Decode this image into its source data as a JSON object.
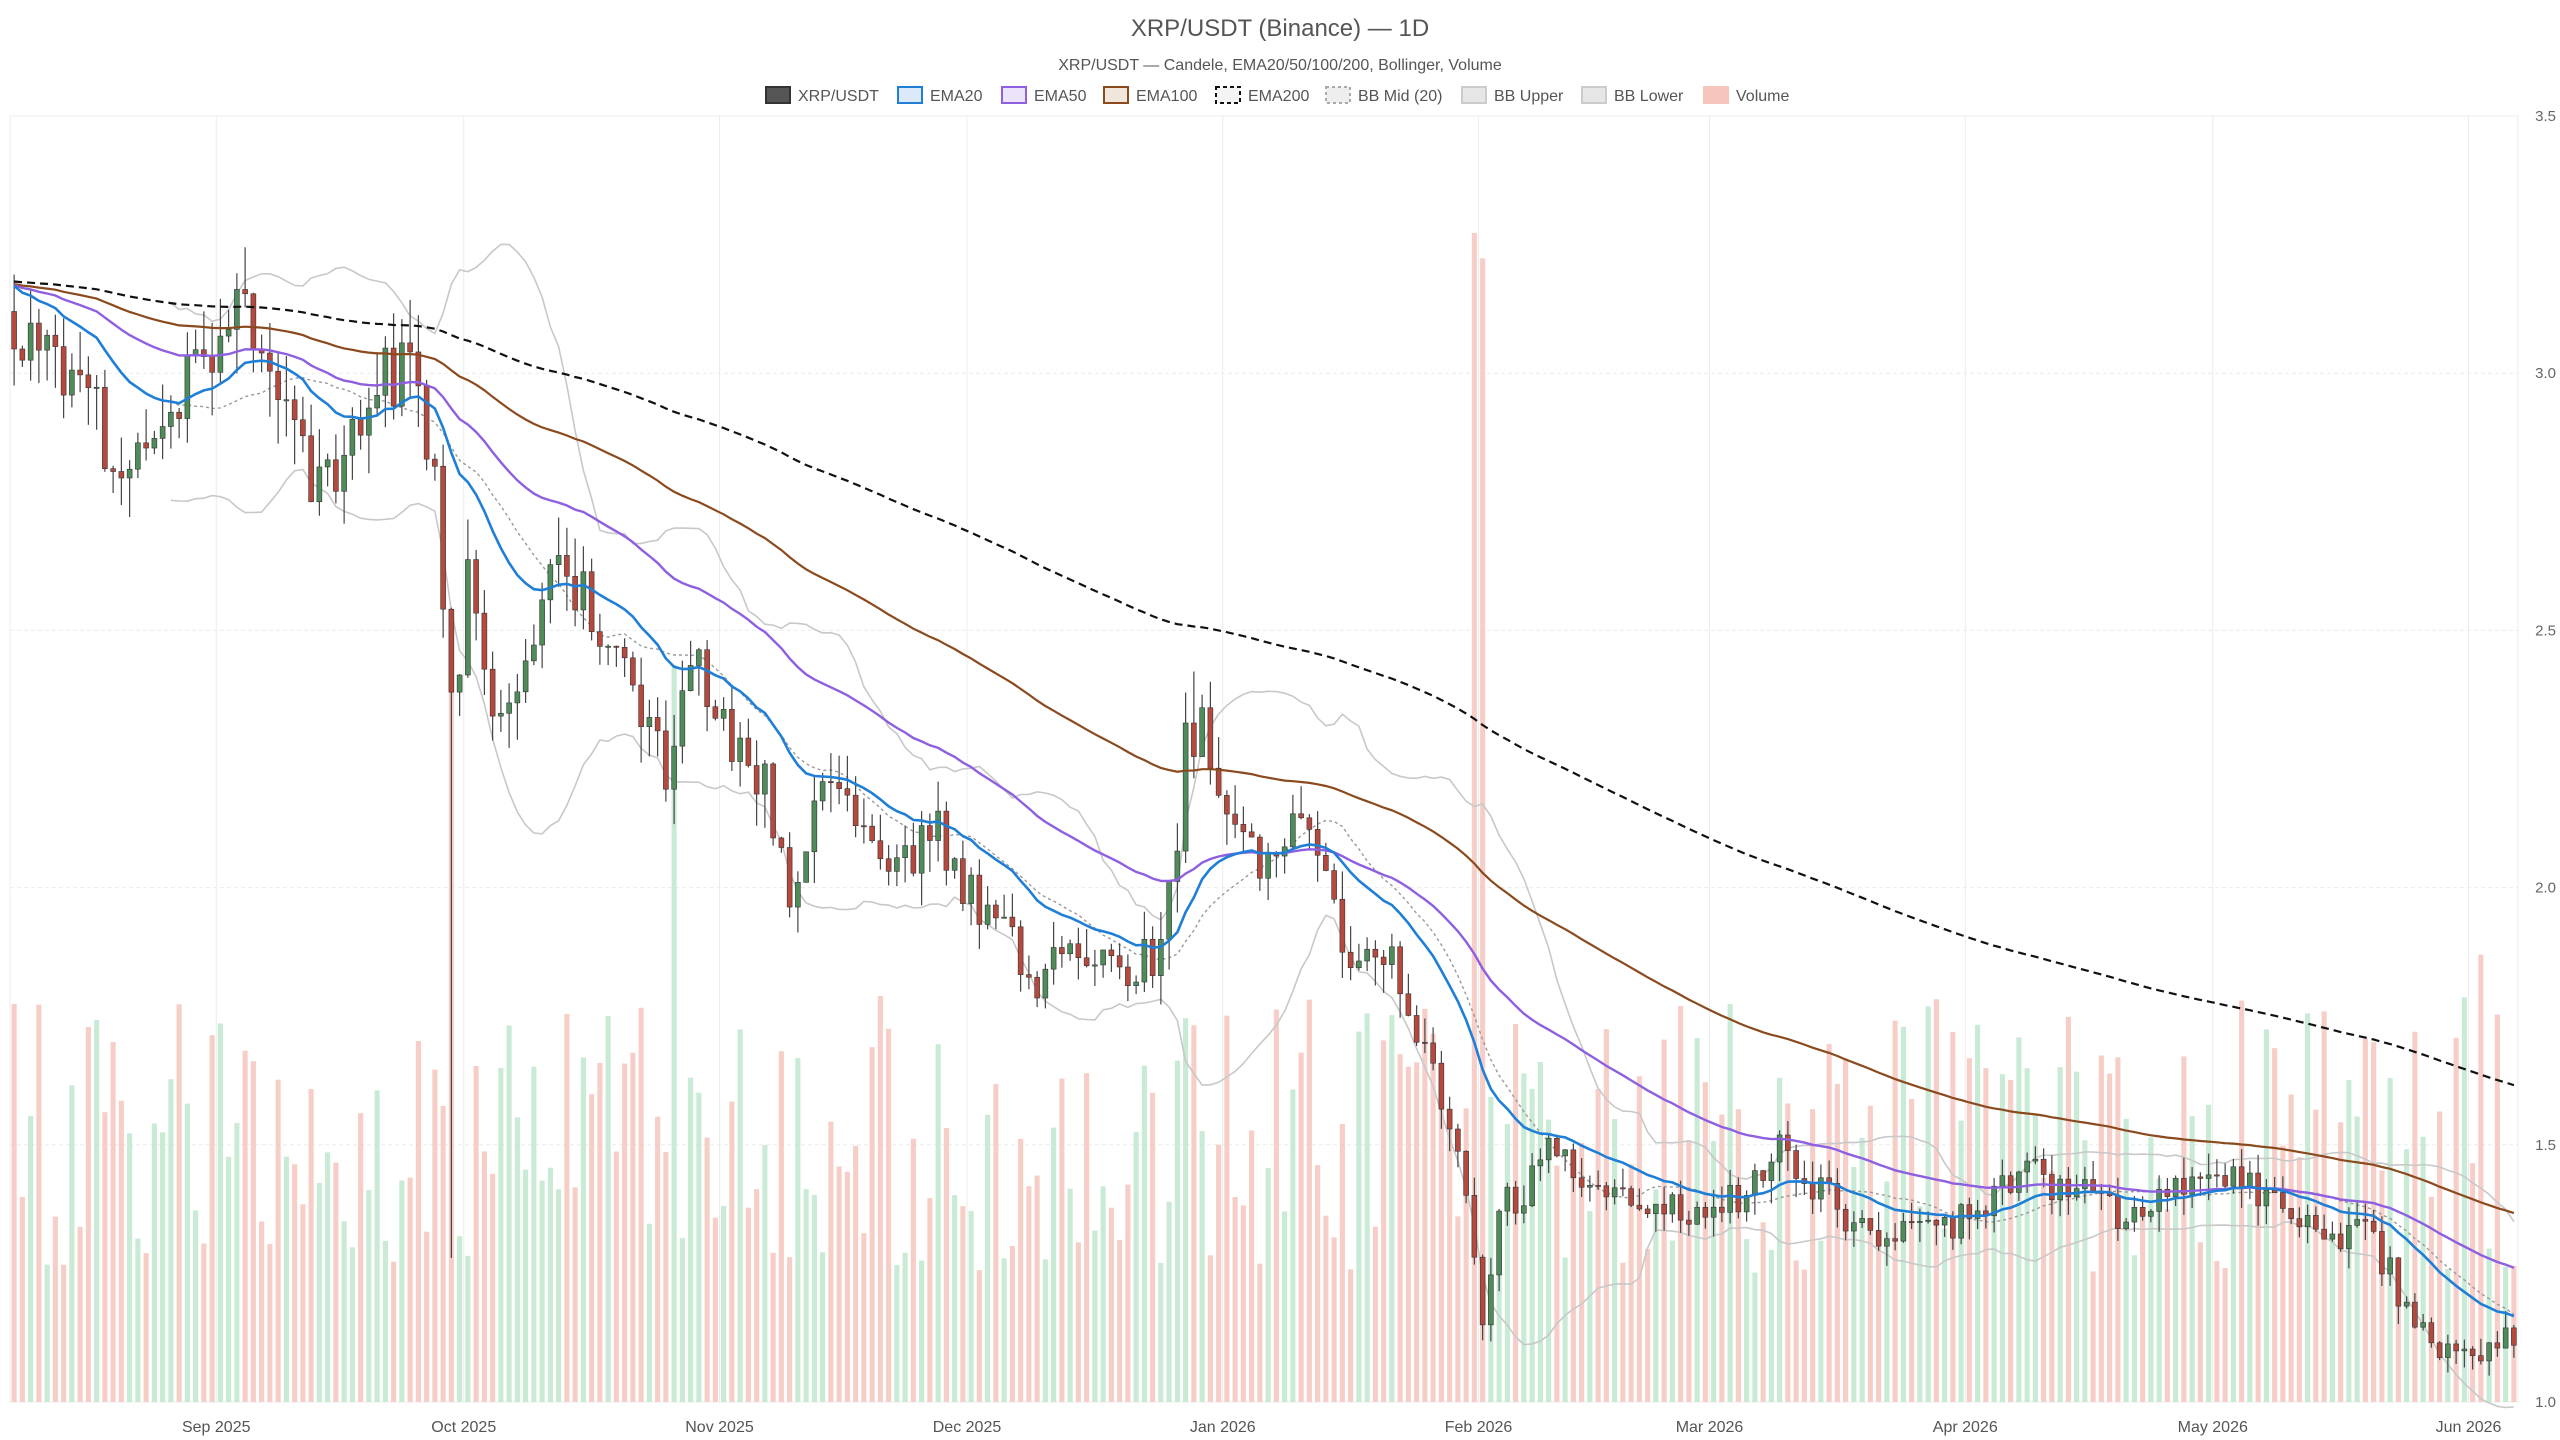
{
  "chart_data": {
    "type": "candlestick",
    "title": "XRP/USDT (Binance) — 1D",
    "subtitle": "XRP/USDT — Candele, EMA20/50/100/200, Bollinger, Volume",
    "legend": [
      "XRP/USDT",
      "EMA20",
      "EMA50",
      "EMA100",
      "EMA200",
      "BB Mid (20)",
      "BB Upper",
      "BB Lower",
      "Volume"
    ],
    "legend_placement": "top-center",
    "grid": true,
    "y_axis_side": "right",
    "y_ticks": [
      1.0,
      1.5,
      2.0,
      2.5,
      3.0,
      3.5
    ],
    "ylim": [
      1.0,
      3.5
    ],
    "x_ticks": [
      {
        "label": "Sep 2025",
        "day": 25
      },
      {
        "label": "Oct 2025",
        "day": 55
      },
      {
        "label": "Nov 2025",
        "day": 86
      },
      {
        "label": "Dec 2025",
        "day": 116
      },
      {
        "label": "Jan 2026",
        "day": 147
      },
      {
        "label": "Feb 2026",
        "day": 178
      },
      {
        "label": "Mar 2026",
        "day": 206
      },
      {
        "label": "Apr 2026",
        "day": 237
      },
      {
        "label": "May 2026",
        "day": 267
      },
      {
        "label": "Jun 2026",
        "day": 298
      }
    ],
    "x_range_days": [
      0,
      304
    ],
    "colors": {
      "up": "#4e8c5a",
      "down": "#b5493d",
      "wick": "#444444",
      "ema20": "#1f7fd6",
      "ema50": "#8e5fe0",
      "ema100": "#8b4a1e",
      "ema200": "#111111",
      "bb_mid": "#999999",
      "bb_band": "#c8c8c8",
      "vol_up": "#bfe6cc",
      "vol_down": "#f6c6bd",
      "grid": "#ececec"
    },
    "price_anchors": [
      [
        0,
        3.1
      ],
      [
        3,
        3.05
      ],
      [
        6,
        2.95
      ],
      [
        9,
        2.97
      ],
      [
        12,
        2.8
      ],
      [
        15,
        2.8
      ],
      [
        18,
        2.9
      ],
      [
        21,
        3.0
      ],
      [
        24,
        3.05
      ],
      [
        27,
        3.12
      ],
      [
        30,
        3.05
      ],
      [
        33,
        3.0
      ],
      [
        36,
        2.8
      ],
      [
        39,
        2.78
      ],
      [
        42,
        2.9
      ],
      [
        45,
        3.0
      ],
      [
        48,
        2.98
      ],
      [
        51,
        2.85
      ],
      [
        53,
        2.35
      ],
      [
        55,
        2.6
      ],
      [
        58,
        2.38
      ],
      [
        61,
        2.4
      ],
      [
        64,
        2.55
      ],
      [
        67,
        2.62
      ],
      [
        70,
        2.55
      ],
      [
        73,
        2.45
      ],
      [
        76,
        2.35
      ],
      [
        79,
        2.2
      ],
      [
        82,
        2.48
      ],
      [
        85,
        2.35
      ],
      [
        88,
        2.25
      ],
      [
        91,
        2.2
      ],
      [
        94,
        1.95
      ],
      [
        97,
        2.2
      ],
      [
        100,
        2.18
      ],
      [
        103,
        2.15
      ],
      [
        106,
        2.05
      ],
      [
        109,
        2.08
      ],
      [
        112,
        2.1
      ],
      [
        115,
        2.0
      ],
      [
        118,
        1.95
      ],
      [
        121,
        1.88
      ],
      [
        124,
        1.82
      ],
      [
        127,
        1.9
      ],
      [
        130,
        1.86
      ],
      [
        133,
        1.85
      ],
      [
        136,
        1.84
      ],
      [
        139,
        1.88
      ],
      [
        142,
        2.2
      ],
      [
        144,
        2.3
      ],
      [
        146,
        2.15
      ],
      [
        149,
        2.08
      ],
      [
        152,
        2.06
      ],
      [
        155,
        2.15
      ],
      [
        158,
        2.05
      ],
      [
        161,
        1.9
      ],
      [
        164,
        1.86
      ],
      [
        167,
        1.88
      ],
      [
        170,
        1.72
      ],
      [
        173,
        1.58
      ],
      [
        176,
        1.4
      ],
      [
        178,
        1.15
      ],
      [
        180,
        1.4
      ],
      [
        183,
        1.4
      ],
      [
        186,
        1.5
      ],
      [
        189,
        1.46
      ],
      [
        192,
        1.4
      ],
      [
        195,
        1.42
      ],
      [
        198,
        1.4
      ],
      [
        201,
        1.38
      ],
      [
        204,
        1.36
      ],
      [
        207,
        1.4
      ],
      [
        210,
        1.38
      ],
      [
        213,
        1.5
      ],
      [
        216,
        1.45
      ],
      [
        219,
        1.42
      ],
      [
        222,
        1.35
      ],
      [
        225,
        1.34
      ],
      [
        228,
        1.32
      ],
      [
        231,
        1.36
      ],
      [
        234,
        1.34
      ],
      [
        237,
        1.37
      ],
      [
        240,
        1.4
      ],
      [
        243,
        1.46
      ],
      [
        246,
        1.43
      ],
      [
        249,
        1.42
      ],
      [
        252,
        1.4
      ],
      [
        255,
        1.37
      ],
      [
        258,
        1.38
      ],
      [
        261,
        1.4
      ],
      [
        264,
        1.42
      ],
      [
        267,
        1.45
      ],
      [
        270,
        1.44
      ],
      [
        273,
        1.4
      ],
      [
        276,
        1.36
      ],
      [
        279,
        1.34
      ],
      [
        282,
        1.3
      ],
      [
        285,
        1.34
      ],
      [
        288,
        1.25
      ],
      [
        291,
        1.15
      ],
      [
        294,
        1.1
      ],
      [
        297,
        1.08
      ],
      [
        300,
        1.1
      ],
      [
        302,
        1.13
      ]
    ],
    "volume_spikes": [
      {
        "day": 53,
        "volume": 1.4
      },
      {
        "day": 80,
        "volume": 1.45
      },
      {
        "day": 177,
        "volume": 2.3
      },
      {
        "day": 178,
        "volume": 2.25
      },
      {
        "day": 299,
        "volume": 0.88
      }
    ]
  }
}
